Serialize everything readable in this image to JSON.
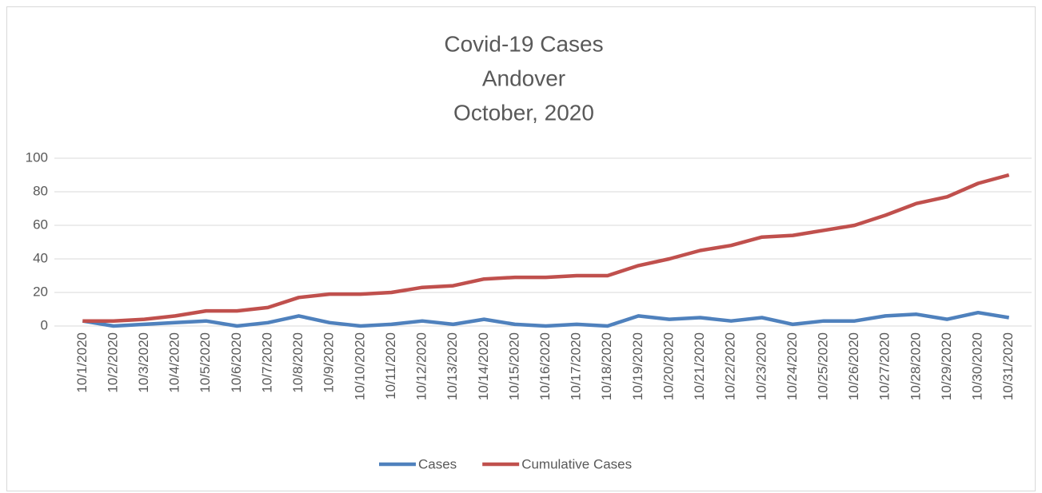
{
  "chart_data": {
    "type": "line",
    "title": [
      "Covid-19 Cases",
      "Andover",
      "October, 2020"
    ],
    "categories": [
      "10/1/2020",
      "10/2/2020",
      "10/3/2020",
      "10/4/2020",
      "10/5/2020",
      "10/6/2020",
      "10/7/2020",
      "10/8/2020",
      "10/9/2020",
      "10/10/2020",
      "10/11/2020",
      "10/12/2020",
      "10/13/2020",
      "10/14/2020",
      "10/15/2020",
      "10/16/2020",
      "10/17/2020",
      "10/18/2020",
      "10/19/2020",
      "10/20/2020",
      "10/21/2020",
      "10/22/2020",
      "10/23/2020",
      "10/24/2020",
      "10/25/2020",
      "10/26/2020",
      "10/27/2020",
      "10/28/2020",
      "10/29/2020",
      "10/30/2020",
      "10/31/2020"
    ],
    "series": [
      {
        "name": "Cases",
        "color": "#4f81bd",
        "values": [
          3,
          0,
          1,
          2,
          3,
          0,
          2,
          6,
          2,
          0,
          1,
          3,
          1,
          4,
          1,
          0,
          1,
          0,
          6,
          4,
          5,
          3,
          5,
          1,
          3,
          3,
          6,
          7,
          4,
          8,
          5
        ]
      },
      {
        "name": "Cumulative Cases",
        "color": "#c0504d",
        "values": [
          3,
          3,
          4,
          6,
          9,
          9,
          11,
          17,
          19,
          19,
          20,
          23,
          24,
          28,
          29,
          29,
          30,
          30,
          36,
          40,
          45,
          48,
          53,
          54,
          57,
          60,
          66,
          73,
          77,
          85,
          90
        ]
      }
    ],
    "ylim": [
      0,
      100
    ],
    "yticks": [
      0,
      20,
      40,
      60,
      80,
      100
    ],
    "grid": true,
    "legend": "bottom"
  }
}
